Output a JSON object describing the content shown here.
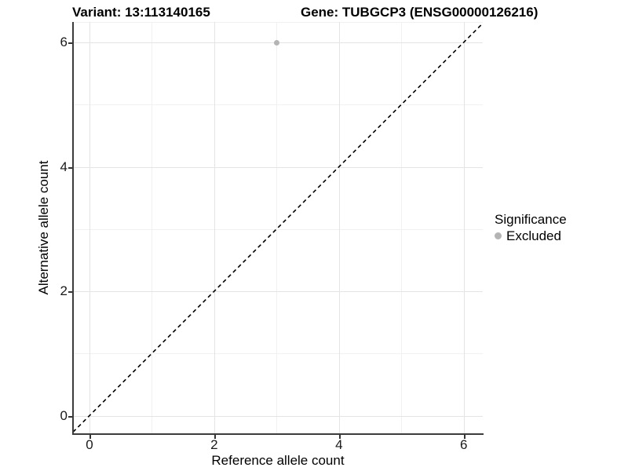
{
  "titles": {
    "variant": "Variant: 13:113140165",
    "gene": "Gene: TUBGCP3 (ENSG00000126216)"
  },
  "chart_data": {
    "type": "scatter",
    "title": "Variant: 13:113140165   Gene: TUBGCP3 (ENSG00000126216)",
    "xlabel": "Reference allele count",
    "ylabel": "Alternative allele count",
    "xlim": [
      -0.3,
      6.3
    ],
    "ylim": [
      -0.3,
      6.3
    ],
    "x_ticks": [
      0,
      2,
      4,
      6
    ],
    "y_ticks": [
      0,
      2,
      4,
      6
    ],
    "x_minor_ticks": [
      1,
      3,
      5
    ],
    "y_minor_ticks": [
      1,
      3,
      5
    ],
    "grid": true,
    "series": [
      {
        "name": "Excluded",
        "points": [
          {
            "x": 3,
            "y": 6
          }
        ]
      }
    ],
    "reference_line": {
      "kind": "identity y=x",
      "style": "dashed",
      "color": "#000000"
    },
    "legend": {
      "title": "Significance",
      "position": "right",
      "entries": [
        {
          "label": "Excluded",
          "color": "#b4b4b4"
        }
      ]
    }
  },
  "colors": {
    "point": "#b4b4b4",
    "grid_major": "#e4e4e4",
    "grid_minor": "#f1f1f1",
    "axis_line": "#3c3c3c",
    "text": "#000000"
  }
}
